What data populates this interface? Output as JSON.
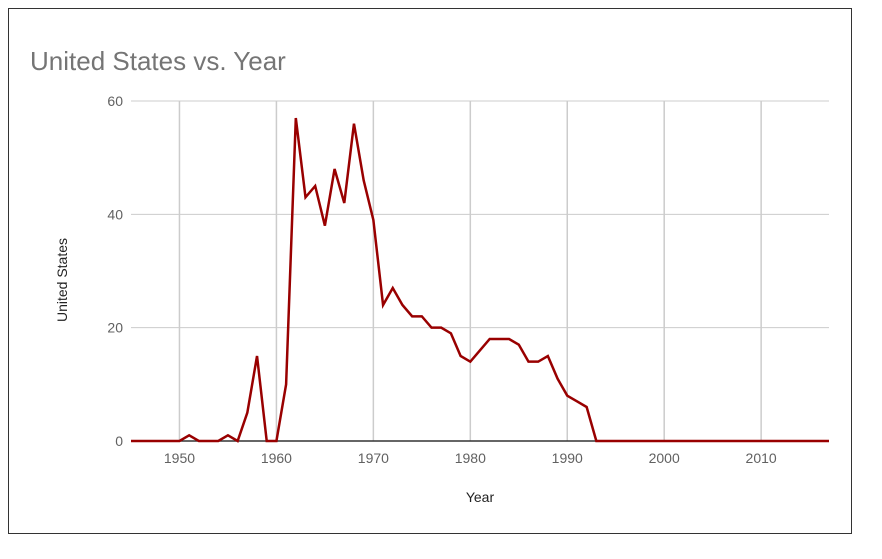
{
  "chart_data": {
    "type": "line",
    "title": "United States vs. Year",
    "xlabel": "Year",
    "ylabel": "United States",
    "xlim": [
      1945,
      2017
    ],
    "ylim": [
      0,
      60
    ],
    "x_ticks": [
      "1950",
      "1960",
      "1970",
      "1980",
      "1990",
      "2000",
      "2010"
    ],
    "y_ticks": [
      "0",
      "20",
      "40",
      "60"
    ],
    "grid": true,
    "legend": "none",
    "series": [
      {
        "color": "#990000",
        "points": [
          [
            1945,
            0
          ],
          [
            1946,
            0
          ],
          [
            1947,
            0
          ],
          [
            1948,
            0
          ],
          [
            1949,
            0
          ],
          [
            1950,
            0
          ],
          [
            1951,
            1
          ],
          [
            1952,
            0
          ],
          [
            1953,
            0
          ],
          [
            1954,
            0
          ],
          [
            1955,
            1
          ],
          [
            1956,
            0
          ],
          [
            1957,
            5
          ],
          [
            1958,
            15
          ],
          [
            1959,
            0
          ],
          [
            1960,
            0
          ],
          [
            1961,
            10
          ],
          [
            1962,
            57
          ],
          [
            1963,
            43
          ],
          [
            1964,
            45
          ],
          [
            1965,
            38
          ],
          [
            1966,
            48
          ],
          [
            1967,
            42
          ],
          [
            1968,
            56
          ],
          [
            1969,
            46
          ],
          [
            1970,
            39
          ],
          [
            1971,
            24
          ],
          [
            1972,
            27
          ],
          [
            1973,
            24
          ],
          [
            1974,
            22
          ],
          [
            1975,
            22
          ],
          [
            1976,
            20
          ],
          [
            1977,
            20
          ],
          [
            1978,
            19
          ],
          [
            1979,
            15
          ],
          [
            1980,
            14
          ],
          [
            1981,
            16
          ],
          [
            1982,
            18
          ],
          [
            1983,
            18
          ],
          [
            1984,
            18
          ],
          [
            1985,
            17
          ],
          [
            1986,
            14
          ],
          [
            1987,
            14
          ],
          [
            1988,
            15
          ],
          [
            1989,
            11
          ],
          [
            1990,
            8
          ],
          [
            1991,
            7
          ],
          [
            1992,
            6
          ],
          [
            1993,
            0
          ],
          [
            1994,
            0
          ],
          [
            1995,
            0
          ],
          [
            1996,
            0
          ],
          [
            1997,
            0
          ],
          [
            1998,
            0
          ],
          [
            1999,
            0
          ],
          [
            2000,
            0
          ],
          [
            2001,
            0
          ],
          [
            2002,
            0
          ],
          [
            2003,
            0
          ],
          [
            2004,
            0
          ],
          [
            2005,
            0
          ],
          [
            2006,
            0
          ],
          [
            2007,
            0
          ],
          [
            2008,
            0
          ],
          [
            2009,
            0
          ],
          [
            2010,
            0
          ],
          [
            2011,
            0
          ],
          [
            2012,
            0
          ],
          [
            2013,
            0
          ],
          [
            2014,
            0
          ],
          [
            2015,
            0
          ],
          [
            2016,
            0
          ],
          [
            2017,
            0
          ]
        ]
      }
    ]
  }
}
